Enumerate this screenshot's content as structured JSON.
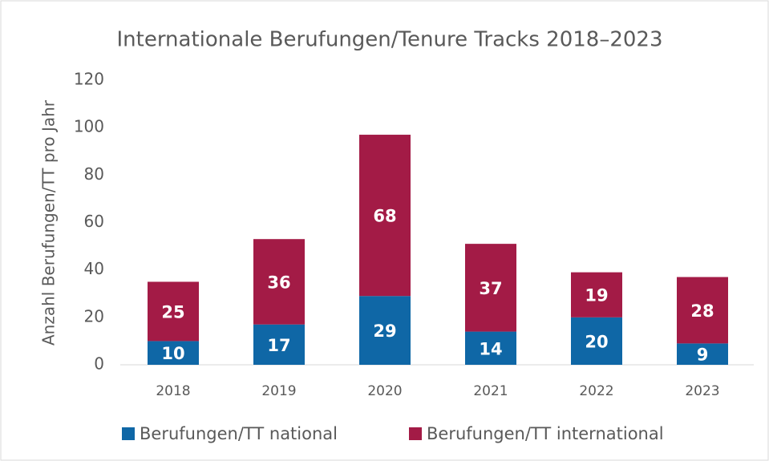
{
  "chart_data": {
    "type": "stacked_bar",
    "title": "Internationale Berufungen/Tenure Tracks 2018–2023",
    "y_label": "Anzahl Berufungen/TT pro Jahr",
    "categories": [
      "2018",
      "2019",
      "2020",
      "2021",
      "2022",
      "2023"
    ],
    "series": [
      {
        "name": "Berufungen/TT national",
        "color": "#0f67a6",
        "values": [
          10,
          17,
          29,
          14,
          20,
          9
        ]
      },
      {
        "name": "Berufungen/TT international",
        "color": "#a31b46",
        "values": [
          25,
          36,
          68,
          37,
          19,
          28
        ]
      }
    ],
    "ylim": [
      0,
      120
    ],
    "yticks": [
      0,
      20,
      40,
      60,
      80,
      100,
      120
    ],
    "grid": false,
    "legend": "bottom"
  }
}
